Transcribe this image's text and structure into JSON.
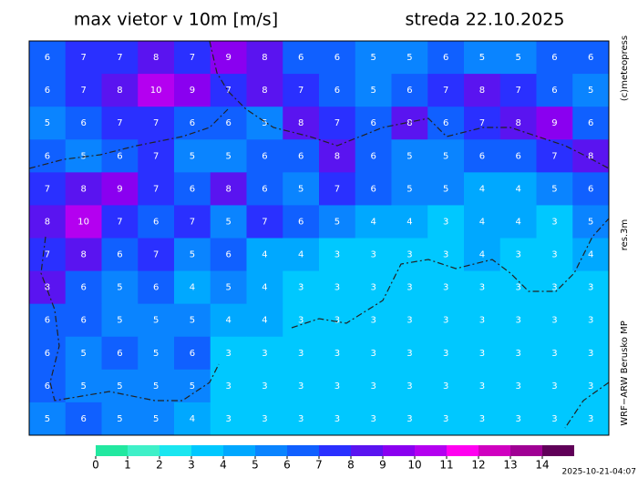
{
  "header": {
    "title": "max vietor v 10m [m/s]",
    "date": "streda 22.10.2025"
  },
  "side_labels": {
    "copyright": "(c)meteopress",
    "resolution": "res.3m",
    "model": "WRF−ARW Berusko MP"
  },
  "timestamp": "2025-10-21-04:07",
  "colorbar": {
    "ticks": [
      0,
      1,
      2,
      3,
      4,
      5,
      6,
      7,
      8,
      9,
      10,
      11,
      12,
      13,
      14
    ],
    "colors": [
      "#22e8a0",
      "#3ff0c8",
      "#1ae6f0",
      "#00c8ff",
      "#00a8ff",
      "#0a84ff",
      "#1060ff",
      "#2a30ff",
      "#5a14f0",
      "#8a00f0",
      "#b400f0",
      "#ff00f0",
      "#d000c0",
      "#a00094",
      "#600058"
    ]
  },
  "map": {
    "grid": [
      [
        6,
        7,
        7,
        8,
        7,
        9,
        8,
        6,
        6,
        5,
        5,
        6,
        5,
        5,
        6,
        6
      ],
      [
        6,
        7,
        8,
        10,
        9,
        7,
        8,
        7,
        6,
        5,
        6,
        7,
        8,
        7,
        6,
        5
      ],
      [
        5,
        6,
        7,
        7,
        6,
        6,
        5,
        8,
        7,
        6,
        8,
        6,
        7,
        8,
        9,
        6
      ],
      [
        6,
        5,
        6,
        7,
        5,
        5,
        6,
        6,
        8,
        6,
        5,
        5,
        6,
        6,
        7,
        8
      ],
      [
        7,
        8,
        9,
        7,
        6,
        8,
        6,
        5,
        7,
        6,
        5,
        5,
        4,
        4,
        5,
        6
      ],
      [
        8,
        10,
        7,
        6,
        7,
        5,
        7,
        6,
        5,
        4,
        4,
        3,
        4,
        4,
        3,
        5
      ],
      [
        7,
        8,
        6,
        7,
        5,
        6,
        4,
        4,
        3,
        3,
        3,
        3,
        4,
        3,
        3,
        4
      ],
      [
        8,
        6,
        5,
        6,
        4,
        5,
        4,
        3,
        3,
        3,
        3,
        3,
        3,
        3,
        3,
        3
      ],
      [
        6,
        6,
        5,
        5,
        5,
        4,
        4,
        3,
        3,
        3,
        3,
        3,
        3,
        3,
        3,
        3
      ],
      [
        6,
        5,
        6,
        5,
        6,
        3,
        3,
        3,
        3,
        3,
        3,
        3,
        3,
        3,
        3,
        3
      ],
      [
        6,
        5,
        5,
        5,
        5,
        3,
        3,
        3,
        3,
        3,
        3,
        3,
        3,
        3,
        3,
        3
      ],
      [
        5,
        6,
        5,
        5,
        4,
        3,
        3,
        3,
        3,
        3,
        3,
        3,
        3,
        3,
        3,
        3
      ]
    ]
  }
}
